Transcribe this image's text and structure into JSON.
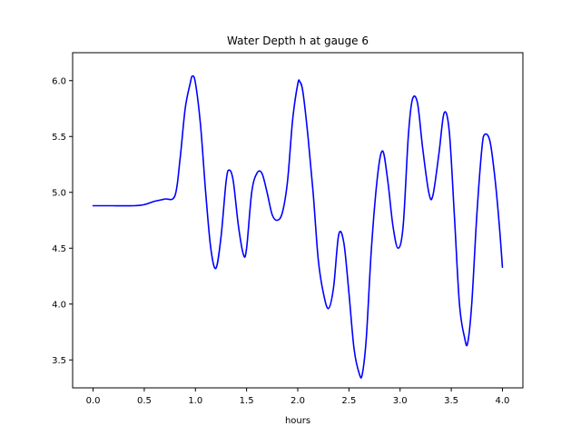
{
  "chart_data": {
    "type": "line",
    "title": "Water Depth h at gauge 6",
    "xlabel": "hours",
    "ylabel": "",
    "xlim": [
      -0.2,
      4.2
    ],
    "ylim": [
      3.25,
      6.25
    ],
    "xticks": [
      0.0,
      0.5,
      1.0,
      1.5,
      2.0,
      2.5,
      3.0,
      3.5,
      4.0
    ],
    "xtick_labels": [
      "0.0",
      "0.5",
      "1.0",
      "1.5",
      "2.0",
      "2.5",
      "3.0",
      "3.5",
      "4.0"
    ],
    "yticks": [
      3.5,
      4.0,
      4.5,
      5.0,
      5.5,
      6.0
    ],
    "ytick_labels": [
      "3.5",
      "4.0",
      "4.5",
      "5.0",
      "5.5",
      "6.0"
    ],
    "grid": false,
    "legend": "none",
    "series": [
      {
        "color": "#0000ff",
        "x": [
          0.0,
          0.2,
          0.4,
          0.5,
          0.6,
          0.7,
          0.8,
          0.85,
          0.9,
          0.95,
          0.97,
          1.0,
          1.05,
          1.1,
          1.15,
          1.2,
          1.25,
          1.3,
          1.33,
          1.37,
          1.42,
          1.47,
          1.5,
          1.55,
          1.6,
          1.65,
          1.7,
          1.75,
          1.8,
          1.85,
          1.9,
          1.95,
          2.0,
          2.02,
          2.05,
          2.1,
          2.15,
          2.2,
          2.25,
          2.3,
          2.35,
          2.4,
          2.45,
          2.5,
          2.55,
          2.6,
          2.63,
          2.67,
          2.72,
          2.78,
          2.83,
          2.88,
          2.93,
          2.98,
          3.03,
          3.08,
          3.12,
          3.17,
          3.22,
          3.28,
          3.32,
          3.38,
          3.43,
          3.48,
          3.53,
          3.58,
          3.63,
          3.66,
          3.7,
          3.75,
          3.8,
          3.83,
          3.88,
          3.93,
          3.97,
          4.0
        ],
        "y": [
          4.88,
          4.88,
          4.88,
          4.89,
          4.92,
          4.94,
          4.97,
          5.3,
          5.75,
          5.98,
          6.04,
          5.98,
          5.6,
          5.0,
          4.5,
          4.32,
          4.6,
          5.1,
          5.2,
          5.1,
          4.7,
          4.44,
          4.5,
          5.0,
          5.17,
          5.17,
          5.0,
          4.8,
          4.75,
          4.82,
          5.1,
          5.65,
          5.97,
          5.99,
          5.9,
          5.5,
          5.0,
          4.4,
          4.1,
          3.96,
          4.15,
          4.62,
          4.55,
          4.1,
          3.6,
          3.38,
          3.37,
          3.7,
          4.5,
          5.15,
          5.37,
          5.1,
          4.7,
          4.5,
          4.7,
          5.5,
          5.83,
          5.8,
          5.4,
          5.0,
          4.97,
          5.35,
          5.71,
          5.55,
          4.8,
          4.0,
          3.7,
          3.65,
          4.0,
          4.8,
          5.4,
          5.52,
          5.45,
          5.1,
          4.7,
          4.33
        ]
      }
    ]
  }
}
